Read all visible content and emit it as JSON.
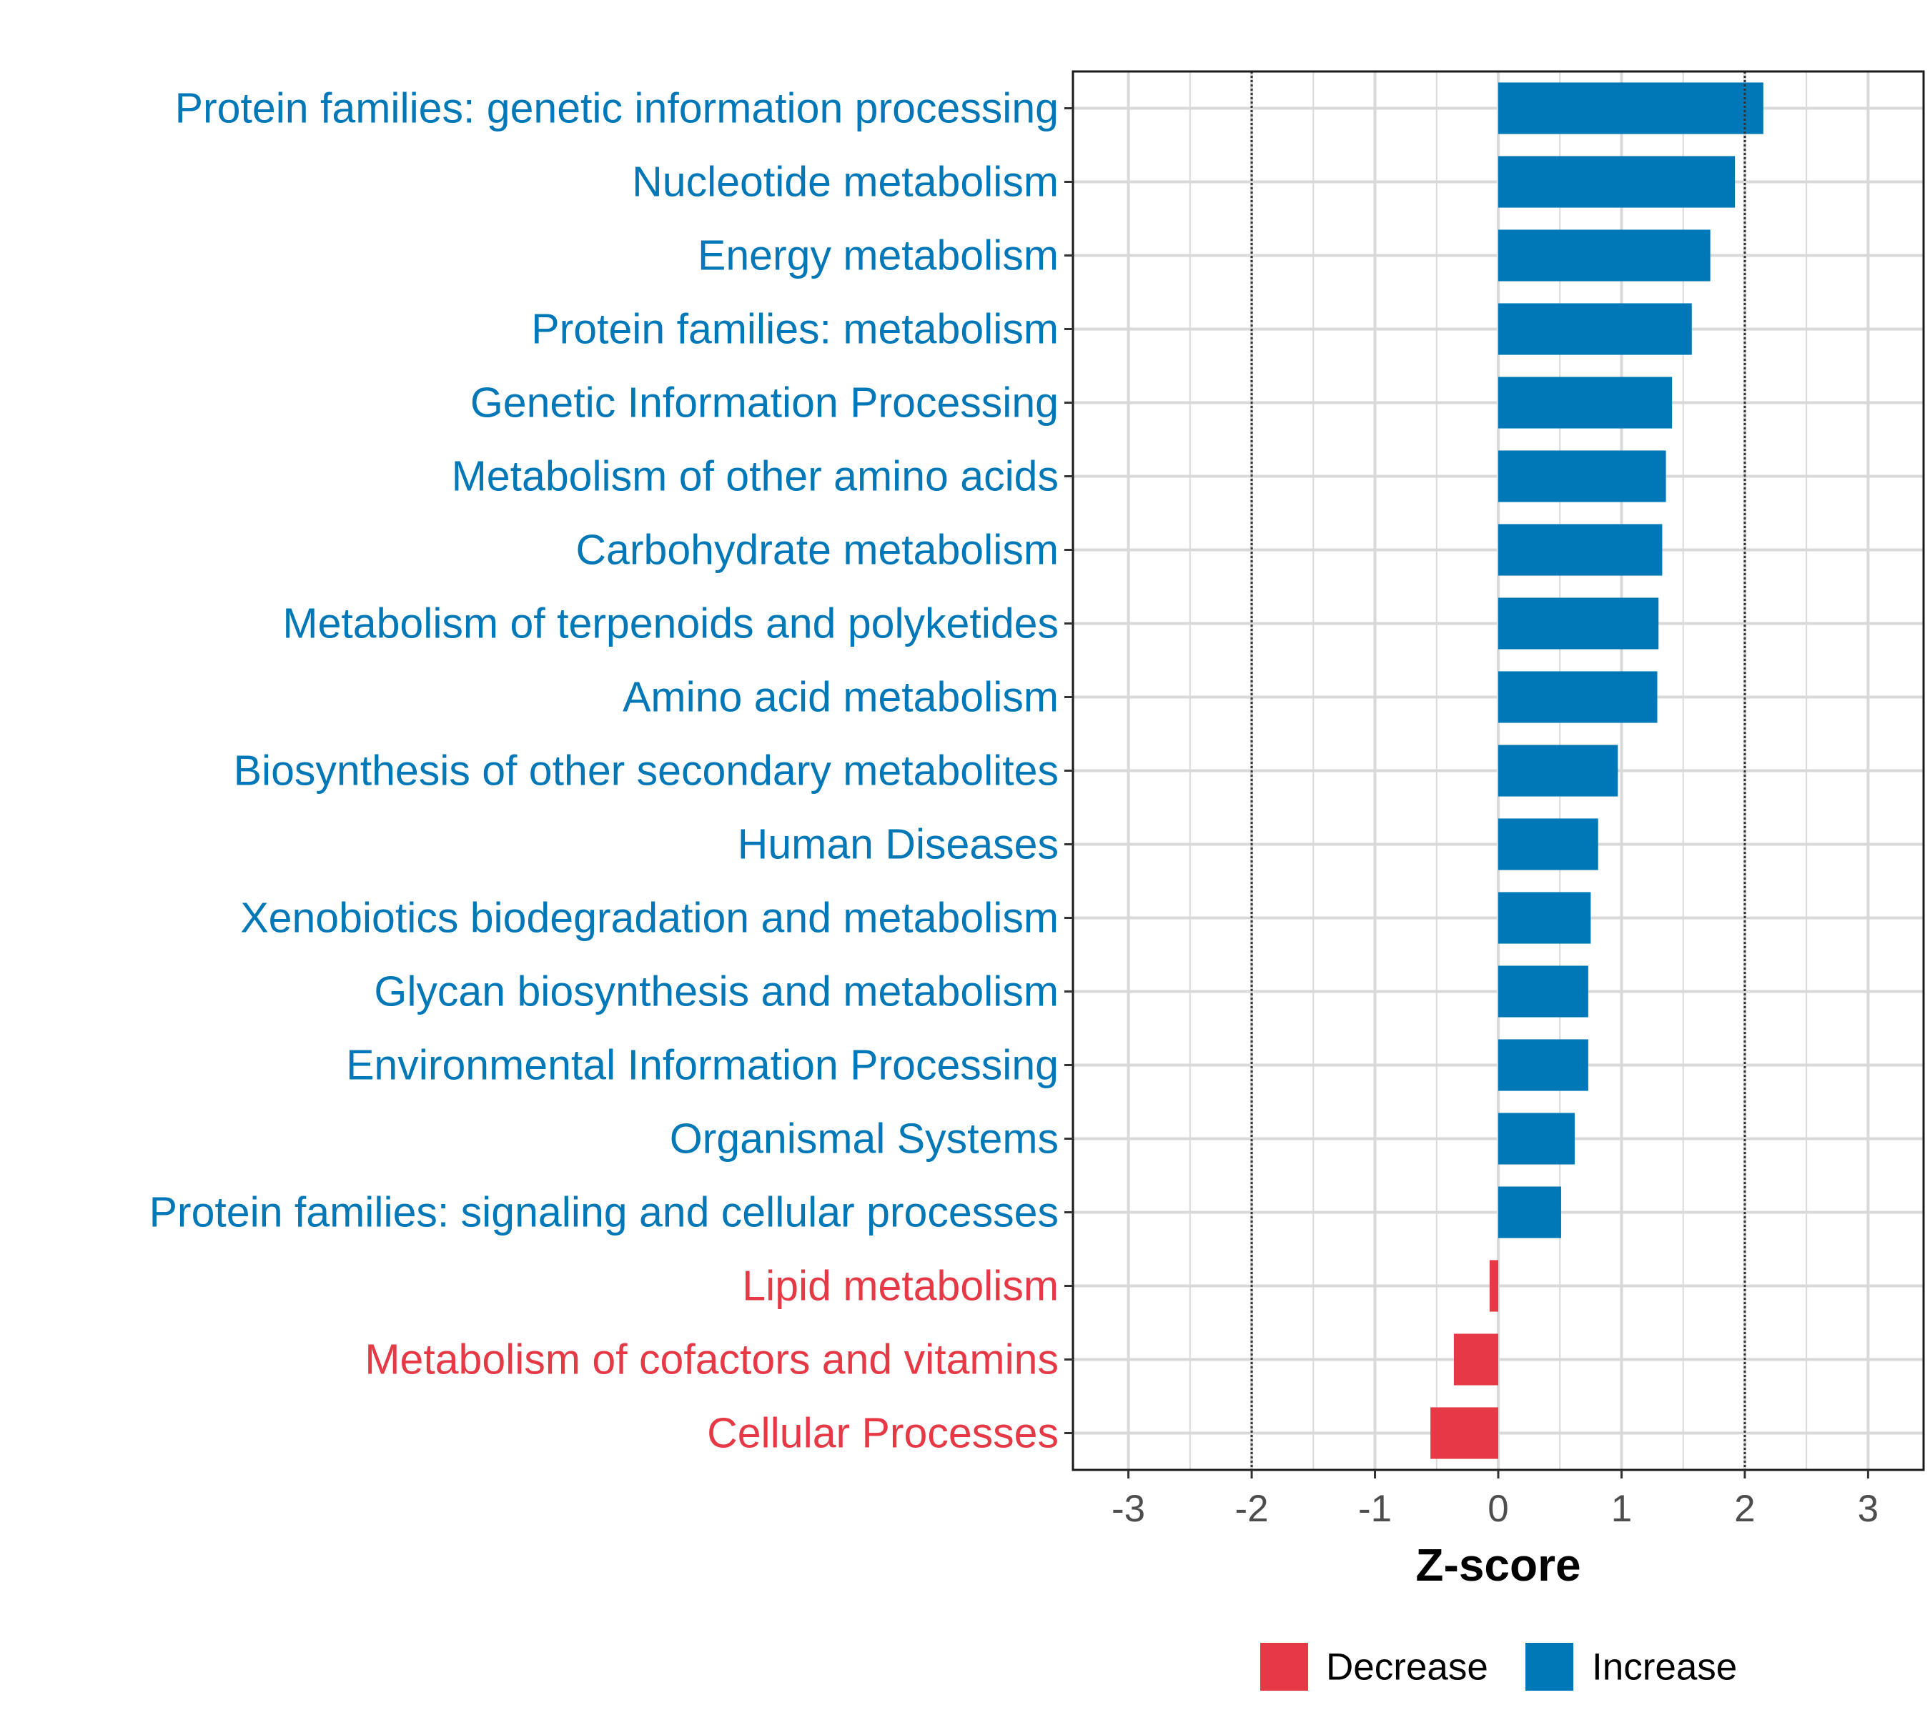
{
  "chart_data": {
    "type": "bar",
    "orientation": "horizontal",
    "title": "",
    "xlabel": "Z-score",
    "ylabel": "",
    "xlim": [
      -3.45,
      3.45
    ],
    "xticks": [
      -3,
      -2,
      -1,
      0,
      1,
      2,
      3
    ],
    "xtick_labels": [
      "-3",
      "-2",
      "-1",
      "0",
      "1",
      "2",
      "3"
    ],
    "reference_lines": [
      -2,
      2
    ],
    "grid": true,
    "legend_position": "bottom",
    "categories": [
      "Protein families: genetic information processing",
      "Nucleotide metabolism",
      "Energy metabolism",
      "Protein families: metabolism",
      "Genetic Information Processing",
      "Metabolism of other amino acids",
      "Carbohydrate metabolism",
      "Metabolism of terpenoids and polyketides",
      "Amino acid metabolism",
      "Biosynthesis of other secondary metabolites",
      "Human Diseases",
      "Xenobiotics biodegradation and metabolism",
      "Glycan biosynthesis and metabolism",
      "Environmental Information Processing",
      "Organismal Systems",
      "Protein families: signaling and cellular processes",
      "Lipid metabolism",
      "Metabolism of cofactors and vitamins",
      "Cellular Processes"
    ],
    "values": [
      2.15,
      1.92,
      1.72,
      1.57,
      1.41,
      1.36,
      1.33,
      1.3,
      1.29,
      0.97,
      0.81,
      0.75,
      0.73,
      0.73,
      0.62,
      0.51,
      -0.07,
      -0.36,
      -0.55
    ],
    "groups": [
      "Increase",
      "Increase",
      "Increase",
      "Increase",
      "Increase",
      "Increase",
      "Increase",
      "Increase",
      "Increase",
      "Increase",
      "Increase",
      "Increase",
      "Increase",
      "Increase",
      "Increase",
      "Increase",
      "Decrease",
      "Decrease",
      "Decrease"
    ],
    "legend": [
      {
        "name": "Decrease",
        "color": "#E63946"
      },
      {
        "name": "Increase",
        "color": "#0077B6"
      }
    ]
  }
}
